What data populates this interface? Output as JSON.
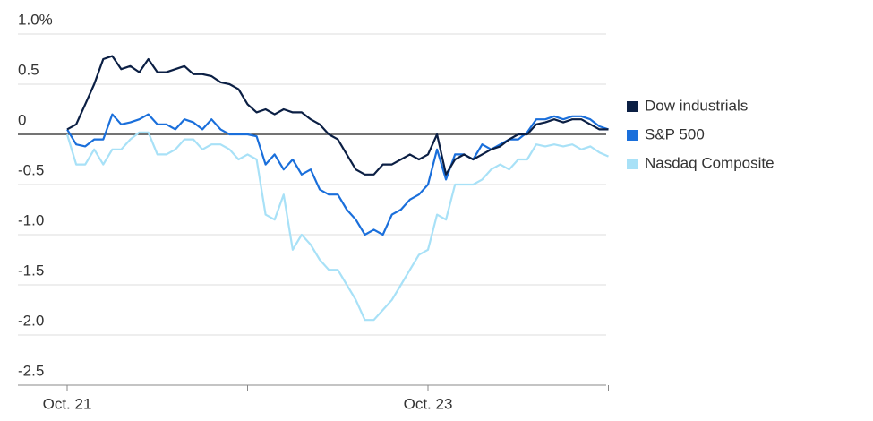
{
  "chart_data": {
    "type": "line",
    "categories": [
      "Oct. 21",
      null,
      null,
      null,
      null,
      null,
      null,
      null,
      null,
      null,
      null,
      null,
      null,
      null,
      null,
      null,
      null,
      null,
      null,
      null,
      null,
      null,
      null,
      null,
      null,
      null,
      null,
      null,
      null,
      null,
      null,
      null,
      null,
      null,
      null,
      null,
      null,
      null,
      null,
      null,
      "Oct. 23",
      null,
      null,
      null,
      null,
      null,
      null,
      null,
      null,
      null,
      null,
      null,
      null,
      null,
      null,
      null,
      null,
      null,
      null,
      null,
      null
    ],
    "series": [
      {
        "name": "Dow industrials",
        "color": "#0b1f44",
        "values": [
          0.05,
          0.1,
          0.3,
          0.5,
          0.75,
          0.78,
          0.65,
          0.68,
          0.62,
          0.75,
          0.62,
          0.62,
          0.65,
          0.68,
          0.6,
          0.6,
          0.58,
          0.52,
          0.5,
          0.45,
          0.3,
          0.22,
          0.25,
          0.2,
          0.25,
          0.22,
          0.22,
          0.15,
          0.1,
          0.0,
          -0.05,
          -0.2,
          -0.35,
          -0.4,
          -0.4,
          -0.3,
          -0.3,
          -0.25,
          -0.2,
          -0.25,
          -0.2,
          0.0,
          -0.4,
          -0.25,
          -0.2,
          -0.25,
          -0.2,
          -0.15,
          -0.12,
          -0.05,
          0.0,
          0.0,
          0.1,
          0.12,
          0.15,
          0.12,
          0.15,
          0.15,
          0.1,
          0.05,
          0.05
        ]
      },
      {
        "name": "S&P 500",
        "color": "#1a6fdb",
        "values": [
          0.05,
          -0.1,
          -0.12,
          -0.05,
          -0.05,
          0.2,
          0.1,
          0.12,
          0.15,
          0.2,
          0.1,
          0.1,
          0.05,
          0.15,
          0.12,
          0.05,
          0.15,
          0.05,
          0.0,
          0.0,
          0.0,
          -0.02,
          -0.3,
          -0.2,
          -0.35,
          -0.25,
          -0.4,
          -0.35,
          -0.55,
          -0.6,
          -0.6,
          -0.75,
          -0.85,
          -1.0,
          -0.95,
          -1.0,
          -0.8,
          -0.75,
          -0.65,
          -0.6,
          -0.5,
          -0.15,
          -0.45,
          -0.2,
          -0.2,
          -0.25,
          -0.1,
          -0.15,
          -0.1,
          -0.05,
          -0.05,
          0.02,
          0.15,
          0.15,
          0.18,
          0.15,
          0.18,
          0.18,
          0.15,
          0.08,
          0.05
        ]
      },
      {
        "name": "Nasdaq Composite",
        "color": "#a8e1f7",
        "values": [
          0.0,
          -0.3,
          -0.3,
          -0.15,
          -0.3,
          -0.15,
          -0.15,
          -0.05,
          0.02,
          0.02,
          -0.2,
          -0.2,
          -0.15,
          -0.05,
          -0.05,
          -0.15,
          -0.1,
          -0.1,
          -0.15,
          -0.25,
          -0.2,
          -0.25,
          -0.8,
          -0.85,
          -0.6,
          -1.15,
          -1.0,
          -1.1,
          -1.25,
          -1.35,
          -1.35,
          -1.5,
          -1.65,
          -1.85,
          -1.85,
          -1.75,
          -1.65,
          -1.5,
          -1.35,
          -1.2,
          -1.15,
          -0.8,
          -0.85,
          -0.5,
          -0.5,
          -0.5,
          -0.45,
          -0.35,
          -0.3,
          -0.35,
          -0.25,
          -0.25,
          -0.1,
          -0.12,
          -0.1,
          -0.12,
          -0.1,
          -0.15,
          -0.12,
          -0.18,
          -0.22
        ]
      }
    ],
    "ylim": [
      -2.5,
      1.0
    ],
    "yticks": [
      {
        "value": 1,
        "label": "1.0%"
      },
      0.5,
      0,
      -0.5,
      {
        "value": -1,
        "label": "-1.0"
      },
      -1.5,
      {
        "value": -2,
        "label": "-2.0"
      },
      -2.5
    ],
    "grid": true
  }
}
